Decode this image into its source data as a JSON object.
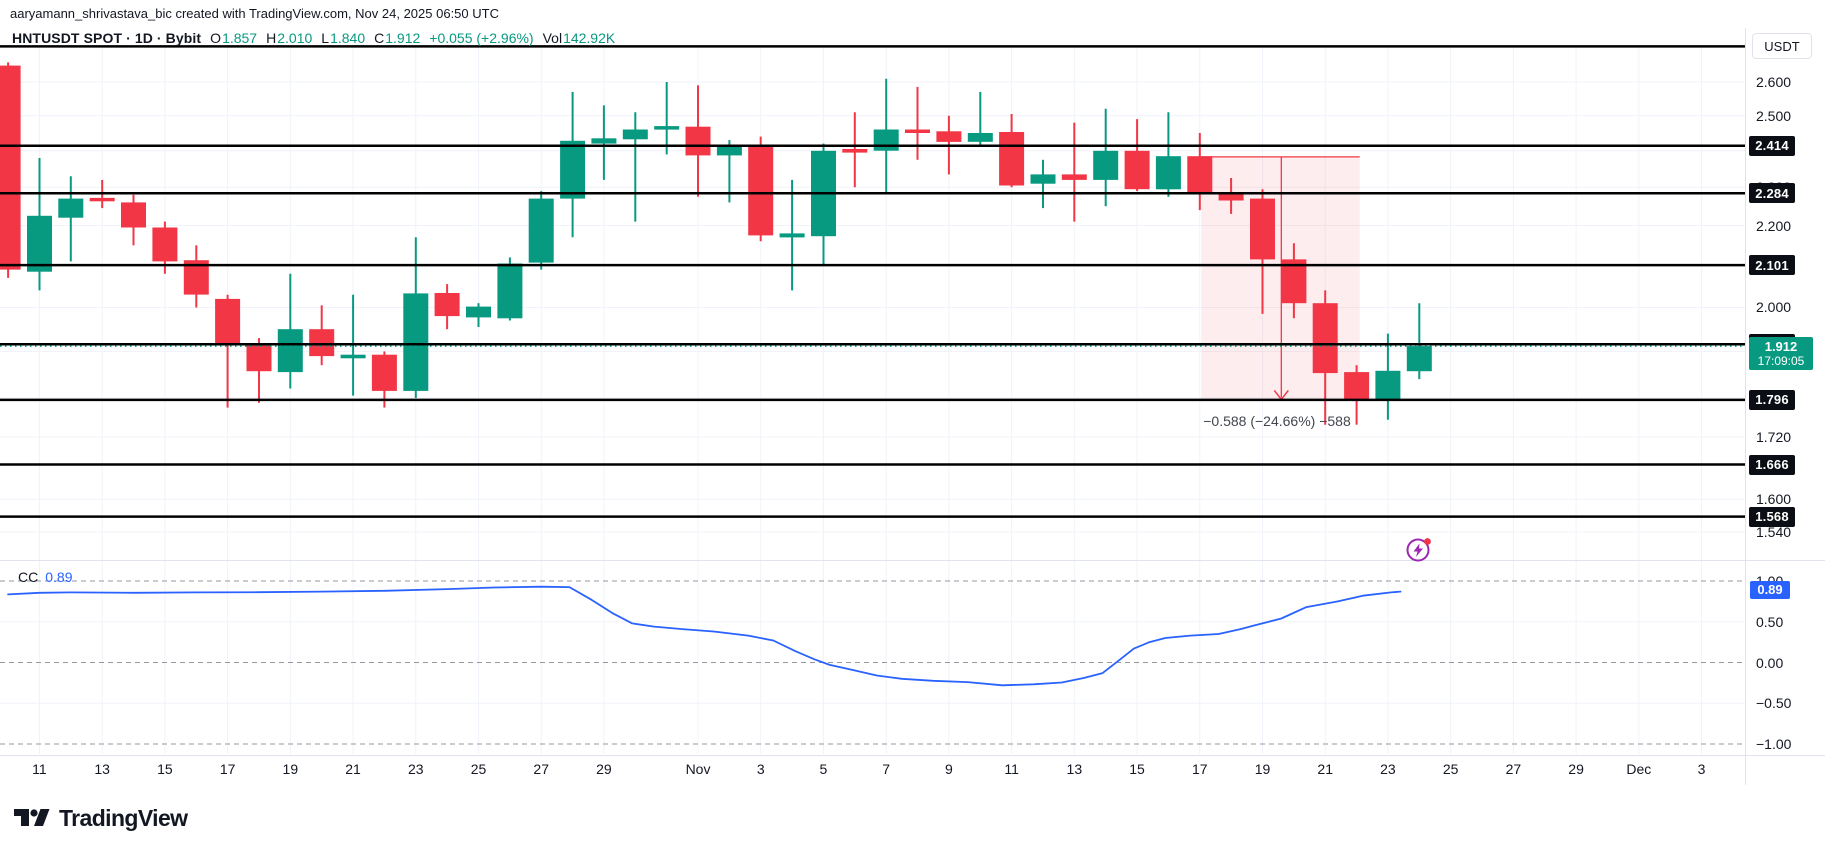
{
  "header": {
    "attribution": "aaryamann_shrivastava_bic created with TradingView.com, Nov 24, 2025 06:50 UTC"
  },
  "legend": {
    "symbol": "HNTUSDT SPOT · 1D · Bybit",
    "ohlc": [
      {
        "label": "O",
        "value": "1.857"
      },
      {
        "label": "H",
        "value": "2.010"
      },
      {
        "label": "L",
        "value": "1.840"
      },
      {
        "label": "C",
        "value": "1.912"
      }
    ],
    "change": "+0.055 (+2.96%)",
    "volume_label": "Vol",
    "volume_value": "142.92K"
  },
  "price_axis": {
    "currency_button": "USDT",
    "ticks": [
      {
        "label": "2.600",
        "price": 2.6
      },
      {
        "label": "2.500",
        "price": 2.5
      },
      {
        "label": "2.400",
        "price": 2.4
      },
      {
        "label": "2.300",
        "price": 2.3
      },
      {
        "label": "2.200",
        "price": 2.2
      },
      {
        "label": "2.000",
        "price": 2.0
      },
      {
        "label": "1.720",
        "price": 1.72
      },
      {
        "label": "1.600",
        "price": 1.6
      },
      {
        "label": "1.540",
        "price": 1.54
      }
    ],
    "gridlines": [
      2.6,
      2.5,
      2.4,
      2.3,
      2.2,
      2.1,
      2.0,
      1.9,
      1.8,
      1.72,
      1.6,
      1.54
    ]
  },
  "price_lines": [
    {
      "price": 2.71,
      "label": "",
      "badge": false
    },
    {
      "price": 2.414,
      "label": "2.414",
      "badge": true
    },
    {
      "price": 2.284,
      "label": "2.284",
      "badge": true
    },
    {
      "price": 2.101,
      "label": "2.101",
      "badge": true
    },
    {
      "price": 1.916,
      "label": "1.916",
      "badge": true
    },
    {
      "price": 1.796,
      "label": "1.796",
      "badge": true
    },
    {
      "price": 1.666,
      "label": "1.666",
      "badge": true
    },
    {
      "price": 1.568,
      "label": "1.568",
      "badge": true
    }
  ],
  "current_price": {
    "value": 1.912,
    "label": "1.912",
    "countdown": "17:09:05"
  },
  "measure": {
    "text": "−0.588 (−24.66%) −588",
    "from_day": 38.05,
    "to_day": 43.1,
    "top_price": 2.383,
    "bottom_price": 1.795,
    "arrow_day": 40.6
  },
  "indicator": {
    "label": "CC",
    "value": "0.89",
    "axis_ticks": [
      {
        "label": "1.00",
        "value": 1.0
      },
      {
        "label": "0.50",
        "value": 0.5
      },
      {
        "label": "0.00",
        "value": 0.0
      },
      {
        "label": "−0.50",
        "value": -0.5
      },
      {
        "label": "−1.00",
        "value": -1.0
      }
    ],
    "badge": {
      "label": "0.89",
      "value": 0.89
    },
    "points": [
      [
        0,
        0.835
      ],
      [
        1,
        0.855
      ],
      [
        2,
        0.86
      ],
      [
        4,
        0.855
      ],
      [
        6,
        0.86
      ],
      [
        8,
        0.862
      ],
      [
        10,
        0.87
      ],
      [
        12,
        0.88
      ],
      [
        14,
        0.9
      ],
      [
        15.5,
        0.92
      ],
      [
        17,
        0.93
      ],
      [
        17.9,
        0.925
      ],
      [
        18.6,
        0.77
      ],
      [
        19.3,
        0.6
      ],
      [
        19.9,
        0.48
      ],
      [
        20.6,
        0.44
      ],
      [
        21.5,
        0.41
      ],
      [
        22.5,
        0.38
      ],
      [
        23.6,
        0.33
      ],
      [
        24.4,
        0.27
      ],
      [
        25.1,
        0.14
      ],
      [
        25.7,
        0.04
      ],
      [
        26.2,
        -0.03
      ],
      [
        26.9,
        -0.09
      ],
      [
        27.7,
        -0.16
      ],
      [
        28.5,
        -0.2
      ],
      [
        29.5,
        -0.225
      ],
      [
        30.6,
        -0.24
      ],
      [
        31.7,
        -0.28
      ],
      [
        32.7,
        -0.267
      ],
      [
        33.6,
        -0.245
      ],
      [
        34.3,
        -0.19
      ],
      [
        34.9,
        -0.13
      ],
      [
        35.4,
        0.02
      ],
      [
        35.9,
        0.17
      ],
      [
        36.4,
        0.25
      ],
      [
        36.9,
        0.3
      ],
      [
        37.7,
        0.33
      ],
      [
        38.6,
        0.35
      ],
      [
        39.3,
        0.41
      ],
      [
        39.7,
        0.45
      ],
      [
        40.6,
        0.54
      ],
      [
        41.4,
        0.68
      ],
      [
        42.4,
        0.75
      ],
      [
        43.2,
        0.82
      ],
      [
        44.1,
        0.86
      ],
      [
        44.4,
        0.87
      ]
    ]
  },
  "time_axis": {
    "ticks": [
      {
        "label": "11",
        "day": 1
      },
      {
        "label": "13",
        "day": 3
      },
      {
        "label": "15",
        "day": 5
      },
      {
        "label": "17",
        "day": 7
      },
      {
        "label": "19",
        "day": 9
      },
      {
        "label": "21",
        "day": 11
      },
      {
        "label": "23",
        "day": 13
      },
      {
        "label": "25",
        "day": 15
      },
      {
        "label": "27",
        "day": 17
      },
      {
        "label": "29",
        "day": 19
      },
      {
        "label": "Nov",
        "day": 22
      },
      {
        "label": "3",
        "day": 24
      },
      {
        "label": "5",
        "day": 26
      },
      {
        "label": "7",
        "day": 28
      },
      {
        "label": "9",
        "day": 30
      },
      {
        "label": "11",
        "day": 32
      },
      {
        "label": "13",
        "day": 34
      },
      {
        "label": "15",
        "day": 36
      },
      {
        "label": "17",
        "day": 38
      },
      {
        "label": "19",
        "day": 40
      },
      {
        "label": "21",
        "day": 42
      },
      {
        "label": "23",
        "day": 44
      },
      {
        "label": "25",
        "day": 46
      },
      {
        "label": "27",
        "day": 48
      },
      {
        "label": "29",
        "day": 50
      },
      {
        "label": "Dec",
        "day": 52
      },
      {
        "label": "3",
        "day": 54
      }
    ]
  },
  "colors": {
    "up": "#089981",
    "down": "#f23645",
    "line": "#2962ff",
    "badge_bg": "#0c0e15",
    "level_line": "#000000",
    "measure": "#f23645",
    "icon_purple": "#9c27b0",
    "grid": "#f0f3fa",
    "axis_border": "#e0e3eb",
    "dashed_grid": "#9598a1"
  },
  "chart_data": {
    "type": "candlestick",
    "title": "HNTUSDT SPOT · 1D · Bybit",
    "price_scale": "log",
    "ylabel": "USDT",
    "x_range": [
      "Oct 10",
      "Dec 3"
    ],
    "visible_price_range": [
      1.54,
      2.71
    ],
    "candles": [
      {
        "date": "Oct 10",
        "o": 2.65,
        "h": 2.66,
        "l": 2.07,
        "c": 2.09
      },
      {
        "date": "Oct 11",
        "o": 2.085,
        "h": 2.38,
        "l": 2.04,
        "c": 2.225
      },
      {
        "date": "Oct 12",
        "o": 2.22,
        "h": 2.33,
        "l": 2.11,
        "c": 2.27
      },
      {
        "date": "Oct 13",
        "o": 2.272,
        "h": 2.32,
        "l": 2.245,
        "c": 2.263
      },
      {
        "date": "Oct 14",
        "o": 2.26,
        "h": 2.28,
        "l": 2.15,
        "c": 2.195
      },
      {
        "date": "Oct 15",
        "o": 2.195,
        "h": 2.21,
        "l": 2.08,
        "c": 2.11
      },
      {
        "date": "Oct 16",
        "o": 2.113,
        "h": 2.15,
        "l": 2.0,
        "c": 2.03
      },
      {
        "date": "Oct 17",
        "o": 2.02,
        "h": 2.03,
        "l": 1.78,
        "c": 1.917
      },
      {
        "date": "Oct 18",
        "o": 1.916,
        "h": 1.93,
        "l": 1.79,
        "c": 1.857
      },
      {
        "date": "Oct 19",
        "o": 1.855,
        "h": 2.08,
        "l": 1.82,
        "c": 1.95
      },
      {
        "date": "Oct 20",
        "o": 1.95,
        "h": 2.005,
        "l": 1.87,
        "c": 1.89
      },
      {
        "date": "Oct 21",
        "o": 1.885,
        "h": 2.03,
        "l": 1.805,
        "c": 1.893
      },
      {
        "date": "Oct 22",
        "o": 1.893,
        "h": 1.9,
        "l": 1.78,
        "c": 1.815
      },
      {
        "date": "Oct 23",
        "o": 1.815,
        "h": 2.17,
        "l": 1.8,
        "c": 2.033
      },
      {
        "date": "Oct 24",
        "o": 2.034,
        "h": 2.055,
        "l": 1.95,
        "c": 1.98
      },
      {
        "date": "Oct 25",
        "o": 1.977,
        "h": 2.01,
        "l": 1.955,
        "c": 2.002
      },
      {
        "date": "Oct 26",
        "o": 1.975,
        "h": 2.12,
        "l": 1.97,
        "c": 2.105
      },
      {
        "date": "Oct 27",
        "o": 2.107,
        "h": 2.29,
        "l": 2.09,
        "c": 2.27
      },
      {
        "date": "Oct 28",
        "o": 2.27,
        "h": 2.57,
        "l": 2.17,
        "c": 2.428
      },
      {
        "date": "Oct 29",
        "o": 2.42,
        "h": 2.53,
        "l": 2.32,
        "c": 2.435
      },
      {
        "date": "Oct 30",
        "o": 2.432,
        "h": 2.51,
        "l": 2.21,
        "c": 2.46
      },
      {
        "date": "Oct 31",
        "o": 2.46,
        "h": 2.6,
        "l": 2.39,
        "c": 2.47
      },
      {
        "date": "Nov 1",
        "o": 2.468,
        "h": 2.59,
        "l": 2.275,
        "c": 2.387
      },
      {
        "date": "Nov 2",
        "o": 2.387,
        "h": 2.43,
        "l": 2.26,
        "c": 2.415
      },
      {
        "date": "Nov 3",
        "o": 2.417,
        "h": 2.44,
        "l": 2.16,
        "c": 2.175
      },
      {
        "date": "Nov 4",
        "o": 2.17,
        "h": 2.32,
        "l": 2.04,
        "c": 2.18
      },
      {
        "date": "Nov 5",
        "o": 2.173,
        "h": 2.42,
        "l": 2.1,
        "c": 2.4
      },
      {
        "date": "Nov 6",
        "o": 2.405,
        "h": 2.51,
        "l": 2.3,
        "c": 2.395
      },
      {
        "date": "Nov 7",
        "o": 2.4,
        "h": 2.61,
        "l": 2.285,
        "c": 2.46
      },
      {
        "date": "Nov 8",
        "o": 2.46,
        "h": 2.585,
        "l": 2.375,
        "c": 2.45
      },
      {
        "date": "Nov 9",
        "o": 2.455,
        "h": 2.5,
        "l": 2.335,
        "c": 2.425
      },
      {
        "date": "Nov 10",
        "o": 2.425,
        "h": 2.57,
        "l": 2.415,
        "c": 2.45
      },
      {
        "date": "Nov 11",
        "o": 2.453,
        "h": 2.505,
        "l": 2.3,
        "c": 2.305
      },
      {
        "date": "Nov 12",
        "o": 2.31,
        "h": 2.375,
        "l": 2.245,
        "c": 2.335
      },
      {
        "date": "Nov 13",
        "o": 2.335,
        "h": 2.48,
        "l": 2.21,
        "c": 2.32
      },
      {
        "date": "Nov 14",
        "o": 2.32,
        "h": 2.52,
        "l": 2.25,
        "c": 2.4
      },
      {
        "date": "Nov 15",
        "o": 2.4,
        "h": 2.49,
        "l": 2.29,
        "c": 2.295
      },
      {
        "date": "Nov 16",
        "o": 2.295,
        "h": 2.51,
        "l": 2.275,
        "c": 2.385
      },
      {
        "date": "Nov 17",
        "o": 2.385,
        "h": 2.45,
        "l": 2.24,
        "c": 2.285
      },
      {
        "date": "Nov 18",
        "o": 2.283,
        "h": 2.325,
        "l": 2.23,
        "c": 2.265
      },
      {
        "date": "Nov 19",
        "o": 2.27,
        "h": 2.295,
        "l": 1.985,
        "c": 2.115
      },
      {
        "date": "Nov 20",
        "o": 2.115,
        "h": 2.155,
        "l": 1.975,
        "c": 2.01
      },
      {
        "date": "Nov 21",
        "o": 2.01,
        "h": 2.04,
        "l": 1.745,
        "c": 1.853
      },
      {
        "date": "Nov 22",
        "o": 1.855,
        "h": 1.87,
        "l": 1.745,
        "c": 1.795
      },
      {
        "date": "Nov 23",
        "o": 1.795,
        "h": 1.94,
        "l": 1.755,
        "c": 1.858
      },
      {
        "date": "Nov 24",
        "o": 1.857,
        "h": 2.01,
        "l": 1.84,
        "c": 1.912
      }
    ],
    "indicator_name": "CC",
    "indicator_current": 0.89,
    "indicator_range": [
      -1,
      1
    ]
  },
  "logo": {
    "text": "TradingView"
  }
}
